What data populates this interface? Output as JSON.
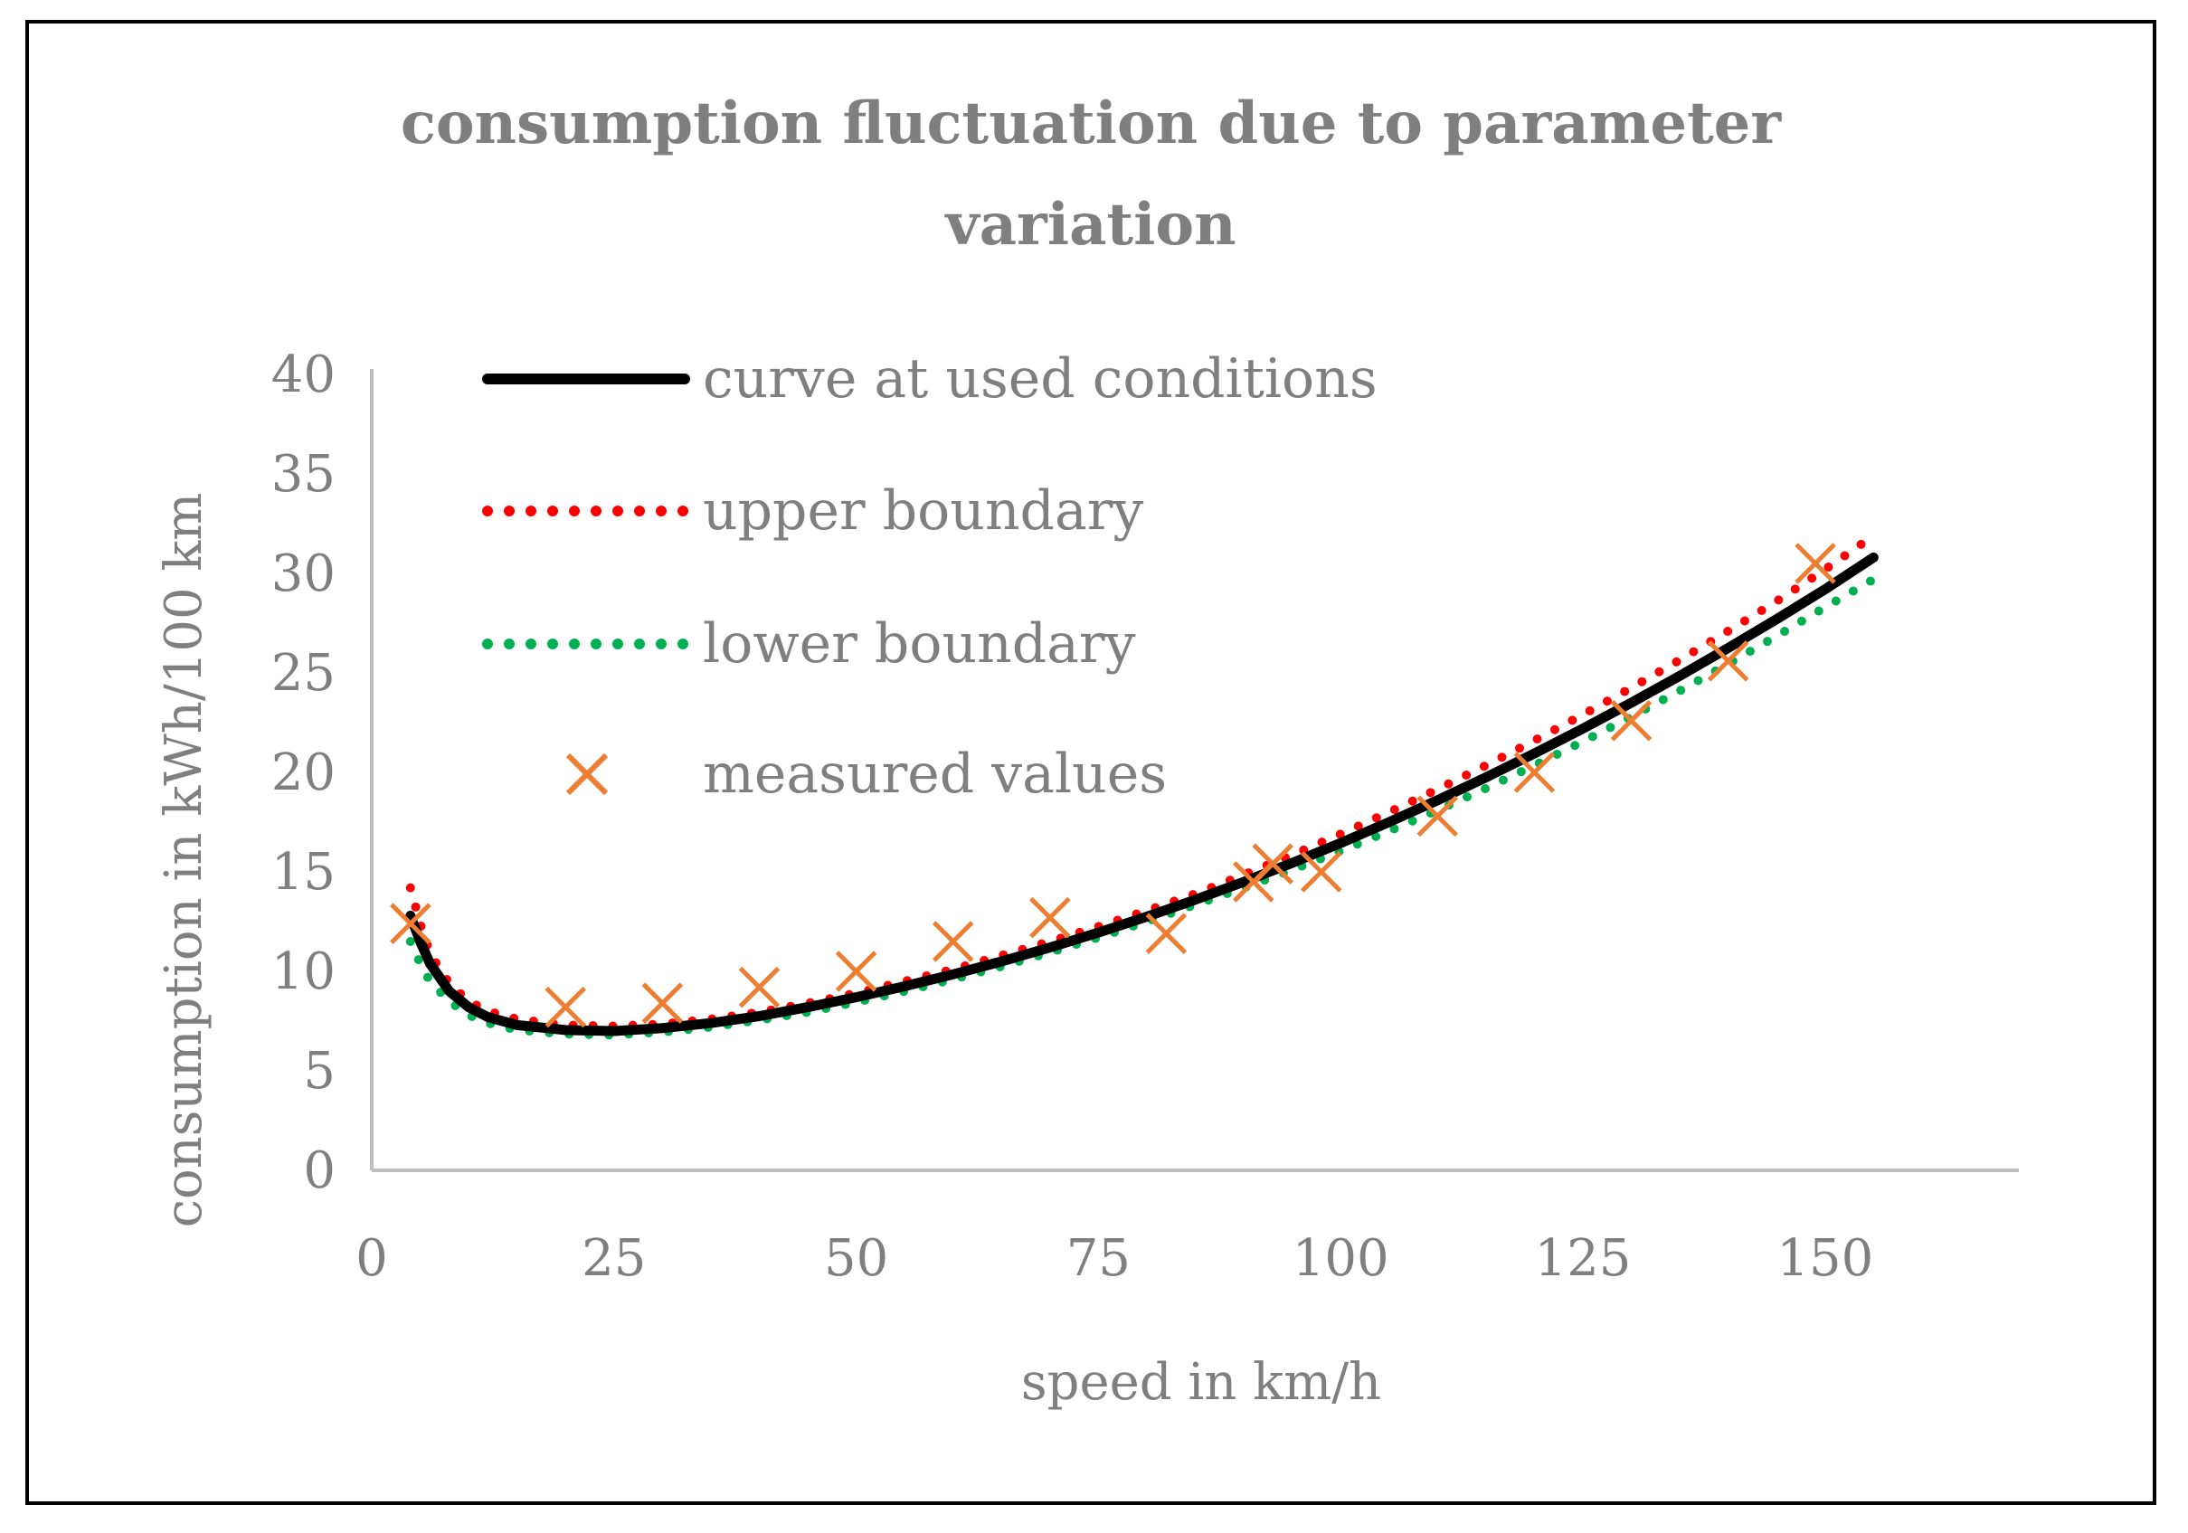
{
  "chart_data": {
    "type": "scatter",
    "title": "consumption fluctuation due to parameter variation",
    "title_lines": [
      "consumption fluctuation due to parameter",
      "variation"
    ],
    "xlabel": "speed in km/h",
    "ylabel": "consumption in kWh/100 km",
    "xlim": [
      0,
      170
    ],
    "ylim": [
      0,
      40
    ],
    "xticks": [
      0,
      25,
      50,
      75,
      100,
      125,
      150
    ],
    "yticks": [
      0,
      5,
      10,
      15,
      20,
      25,
      30,
      35,
      40
    ],
    "grid": false,
    "legend_position": "top-left",
    "series": [
      {
        "name": "curve at used conditions",
        "style": "solid-line",
        "color": "#000000",
        "x": [
          4,
          5,
          6,
          8,
          10,
          12,
          15,
          20,
          25,
          30,
          35,
          40,
          45,
          50,
          55,
          60,
          65,
          70,
          75,
          80,
          85,
          90,
          95,
          100,
          105,
          110,
          115,
          120,
          125,
          130,
          135,
          140,
          145,
          150,
          155
        ],
        "y": [
          12.8,
          11.5,
          10.4,
          9.0,
          8.2,
          7.7,
          7.3,
          7.05,
          7.0,
          7.15,
          7.4,
          7.75,
          8.2,
          8.7,
          9.25,
          9.85,
          10.5,
          11.2,
          11.95,
          12.75,
          13.6,
          14.5,
          15.45,
          16.45,
          17.5,
          18.6,
          19.75,
          20.95,
          22.2,
          23.5,
          24.85,
          26.25,
          27.7,
          29.2,
          30.8
        ]
      },
      {
        "name": "upper boundary",
        "style": "dotted-line",
        "color": "#ff0000",
        "x": [
          4,
          5,
          6,
          8,
          10,
          12,
          15,
          20,
          25,
          30,
          35,
          40,
          45,
          50,
          55,
          60,
          65,
          70,
          75,
          80,
          85,
          90,
          95,
          100,
          105,
          110,
          115,
          120,
          125,
          130,
          135,
          140,
          145,
          150,
          155
        ],
        "y": [
          14.2,
          12.4,
          10.9,
          9.4,
          8.5,
          8.0,
          7.6,
          7.3,
          7.25,
          7.35,
          7.6,
          7.95,
          8.4,
          8.9,
          9.5,
          10.1,
          10.8,
          11.5,
          12.25,
          13.05,
          13.9,
          14.85,
          15.85,
          16.9,
          18.0,
          19.15,
          20.35,
          21.6,
          22.9,
          24.25,
          25.65,
          27.1,
          28.6,
          30.2,
          31.9
        ]
      },
      {
        "name": "lower boundary",
        "style": "dotted-line",
        "color": "#00b050",
        "x": [
          4,
          5,
          6,
          8,
          10,
          12,
          15,
          20,
          25,
          30,
          35,
          40,
          45,
          50,
          55,
          60,
          65,
          70,
          75,
          80,
          85,
          90,
          95,
          100,
          105,
          110,
          115,
          120,
          125,
          130,
          135,
          140,
          145,
          150,
          155
        ],
        "y": [
          11.5,
          10.4,
          9.5,
          8.5,
          7.8,
          7.4,
          7.05,
          6.85,
          6.8,
          6.95,
          7.2,
          7.55,
          7.95,
          8.45,
          9.0,
          9.6,
          10.25,
          10.95,
          11.7,
          12.5,
          13.35,
          14.2,
          15.1,
          16.05,
          17.05,
          18.1,
          19.2,
          20.35,
          21.55,
          22.8,
          24.1,
          25.45,
          26.85,
          28.3,
          29.7
        ]
      },
      {
        "name": "measured values",
        "style": "x-marker",
        "color": "#ed7d31",
        "x": [
          4,
          20,
          30,
          40,
          50,
          60,
          70,
          82,
          91,
          93,
          98,
          110,
          120,
          130,
          140,
          149
        ],
        "y": [
          12.4,
          8.2,
          8.4,
          9.2,
          10.0,
          11.5,
          12.7,
          11.9,
          14.5,
          15.4,
          15.0,
          17.8,
          20.0,
          22.6,
          25.6,
          30.5
        ]
      }
    ]
  }
}
